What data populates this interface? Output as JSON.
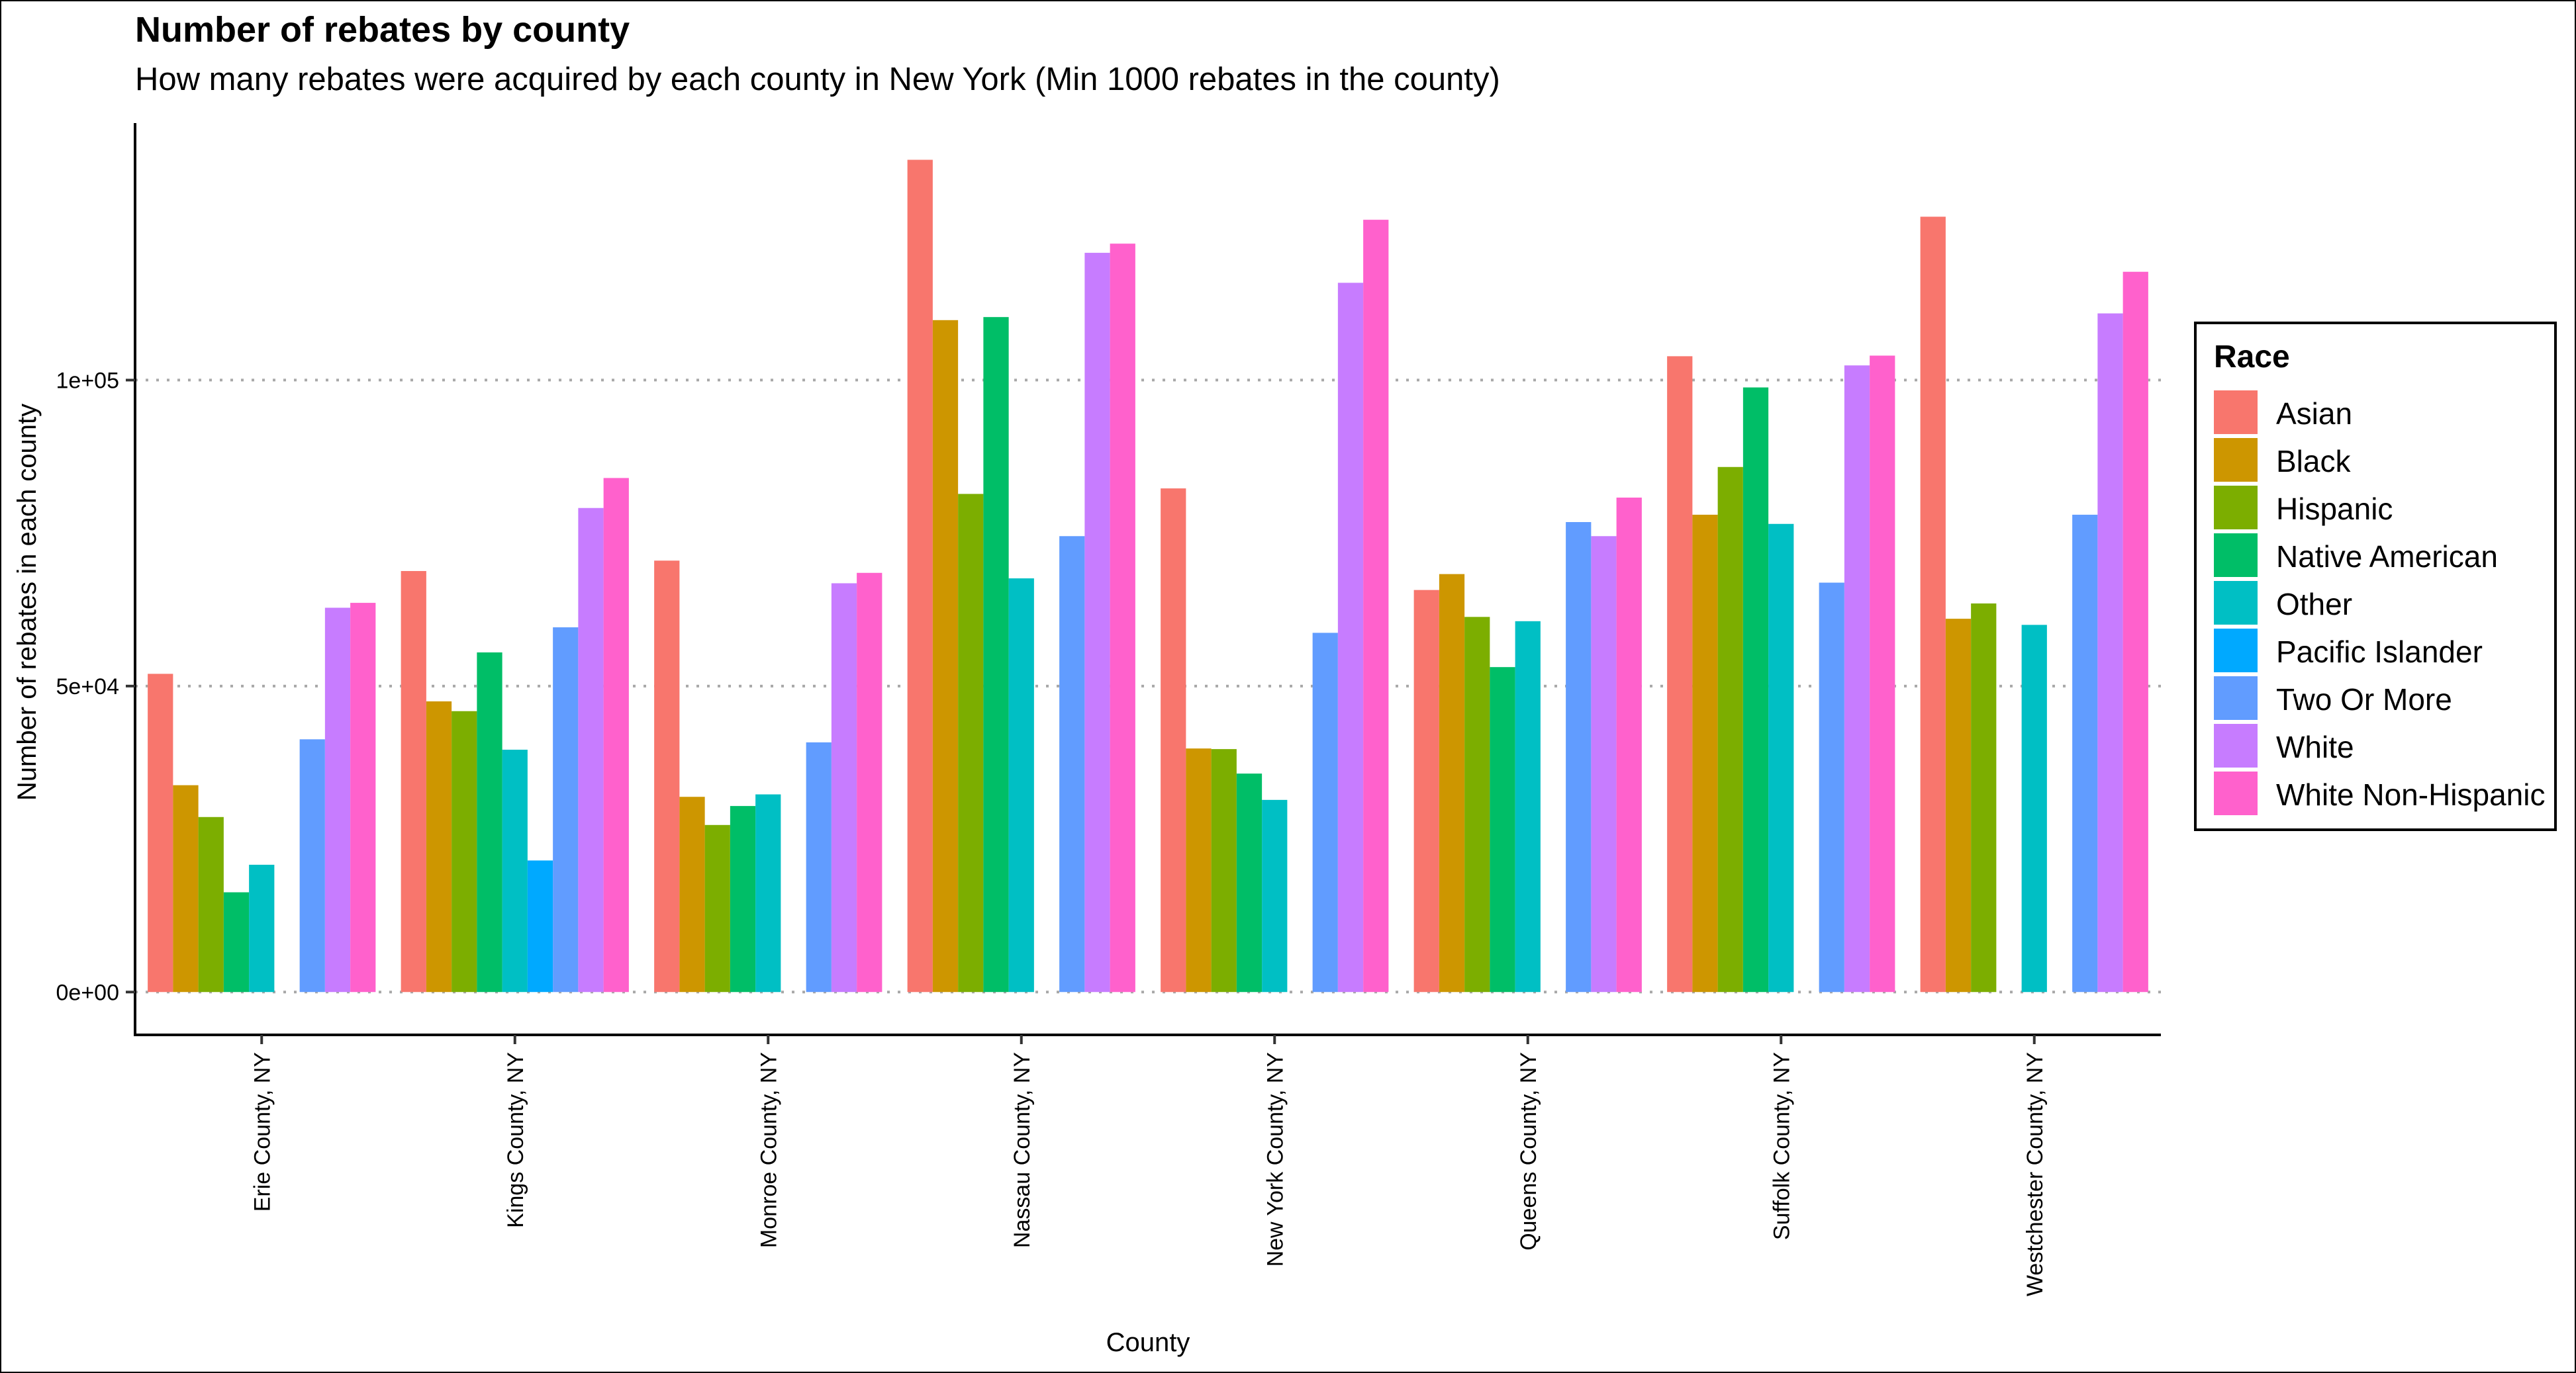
{
  "header": {
    "title": "Number of rebates by county",
    "subtitle": "How many rebates were acquired by each county in New York (Min 1000 rebates in the county)"
  },
  "legend": {
    "title": "Race"
  },
  "colors": [
    "#F8766D",
    "#CD9600",
    "#7CAE00",
    "#00BE67",
    "#00BFC4",
    "#00A9FF",
    "#619CFF",
    "#C77CFF",
    "#FF61CC"
  ],
  "chart_data": {
    "type": "bar",
    "title": "Number of rebates by county",
    "subtitle": "How many rebates were acquired by each county in New York (Min 1000 rebates in the county)",
    "xlabel": "County",
    "ylabel": "Number of rebates in each county",
    "ylim": [
      -7000,
      142000
    ],
    "yticks": [
      0,
      50000,
      100000
    ],
    "ytick_labels": [
      "0e+00",
      "5e+04",
      "1e+05"
    ],
    "grid": "horizontal dotted",
    "legend_position": "right",
    "categories": [
      "Erie County, NY",
      "Kings County, NY",
      "Monroe County, NY",
      "Nassau County, NY",
      "New York County, NY",
      "Queens County, NY",
      "Suffolk County, NY",
      "Westchester County, NY"
    ],
    "series": [
      {
        "name": "Asian",
        "values": [
          52000,
          68800,
          70500,
          136000,
          82300,
          65700,
          103900,
          126700
        ]
      },
      {
        "name": "Black",
        "values": [
          33800,
          47500,
          31900,
          109800,
          39800,
          68300,
          78000,
          61000
        ]
      },
      {
        "name": "Hispanic",
        "values": [
          28600,
          45900,
          27300,
          81400,
          39700,
          61300,
          85800,
          63500
        ]
      },
      {
        "name": "Native American",
        "values": [
          16300,
          55500,
          30400,
          110300,
          35700,
          53100,
          98800,
          null
        ]
      },
      {
        "name": "Other",
        "values": [
          20800,
          39600,
          32300,
          67600,
          31400,
          60600,
          76500,
          60000
        ]
      },
      {
        "name": "Pacific Islander",
        "values": [
          null,
          21500,
          null,
          null,
          null,
          null,
          null,
          null
        ]
      },
      {
        "name": "Two Or More",
        "values": [
          41300,
          59600,
          40800,
          74500,
          58700,
          76800,
          66900,
          78000
        ]
      },
      {
        "name": "White",
        "values": [
          62800,
          79100,
          66800,
          120800,
          115900,
          74500,
          102400,
          110900
        ]
      },
      {
        "name": "White Non-Hispanic",
        "values": [
          63600,
          84000,
          68500,
          122300,
          126200,
          80800,
          104000,
          117700
        ]
      }
    ]
  }
}
